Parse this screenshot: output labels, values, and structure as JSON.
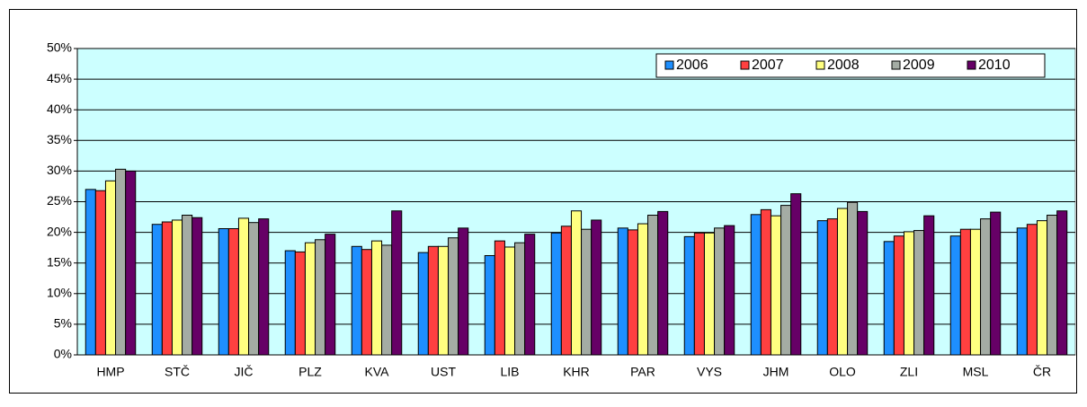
{
  "chart_data": {
    "type": "bar",
    "categories": [
      "HMP",
      "STČ",
      "JIČ",
      "PLZ",
      "KVA",
      "UST",
      "LIB",
      "KHR",
      "PAR",
      "VYS",
      "JHM",
      "OLO",
      "ZLI",
      "MSL",
      "ČR"
    ],
    "series": [
      {
        "name": "2006",
        "color": "#1e8fff",
        "values": [
          27.0,
          21.3,
          20.6,
          17.0,
          17.7,
          16.7,
          16.2,
          19.9,
          20.7,
          19.3,
          22.9,
          21.9,
          18.5,
          19.4,
          20.7
        ]
      },
      {
        "name": "2007",
        "color": "#ff4040",
        "values": [
          26.8,
          21.7,
          20.6,
          16.8,
          17.2,
          17.7,
          18.6,
          21.0,
          20.4,
          19.9,
          23.7,
          22.2,
          19.4,
          20.5,
          21.3
        ]
      },
      {
        "name": "2008",
        "color": "#ffff80",
        "values": [
          28.4,
          22.0,
          22.3,
          18.3,
          18.6,
          17.7,
          17.6,
          23.5,
          21.4,
          19.9,
          22.7,
          23.9,
          20.1,
          20.5,
          21.9
        ]
      },
      {
        "name": "2009",
        "color": "#a4aca4",
        "values": [
          30.3,
          22.8,
          21.6,
          18.8,
          17.9,
          19.1,
          18.3,
          20.5,
          22.8,
          20.7,
          24.4,
          24.9,
          20.3,
          22.2,
          22.8
        ]
      },
      {
        "name": "2010",
        "color": "#660066",
        "values": [
          30.0,
          22.4,
          22.2,
          19.7,
          23.5,
          20.7,
          19.7,
          22.0,
          23.4,
          21.1,
          26.3,
          23.4,
          22.7,
          23.3,
          23.5
        ]
      }
    ],
    "ylim": [
      0,
      50
    ],
    "yticks": [
      {
        "value": 0,
        "label": "0%"
      },
      {
        "value": 5,
        "label": "5%"
      },
      {
        "value": 10,
        "label": "10%"
      },
      {
        "value": 15,
        "label": "15%"
      },
      {
        "value": 20,
        "label": "20%"
      },
      {
        "value": 25,
        "label": "25%"
      },
      {
        "value": 30,
        "label": "30%"
      },
      {
        "value": 35,
        "label": "35%"
      },
      {
        "value": 40,
        "label": "40%"
      },
      {
        "value": 45,
        "label": "45%"
      },
      {
        "value": 50,
        "label": "50%"
      }
    ],
    "grid": true,
    "legend": "top-right",
    "plot_background": "#ccffff"
  }
}
